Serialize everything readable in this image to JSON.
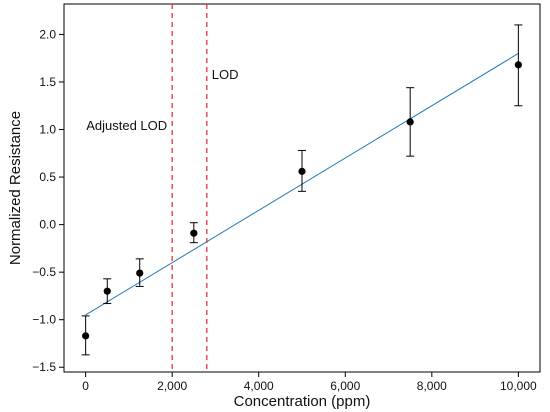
{
  "chart_data": {
    "type": "scatter",
    "xlabel": "Concentration (ppm)",
    "ylabel": "Normalized Resistance",
    "xlim": [
      -500,
      10500
    ],
    "ylim": [
      -1.55,
      2.32
    ],
    "x_ticks": [
      0,
      2000,
      4000,
      6000,
      8000,
      10000
    ],
    "x_tick_labels": [
      "0",
      "2,000",
      "4,000",
      "6,000",
      "8,000",
      "10,000"
    ],
    "y_ticks": [
      -1.5,
      -1.0,
      -0.5,
      0.0,
      0.5,
      1.0,
      1.5,
      2.0
    ],
    "y_tick_labels": [
      "−1.5",
      "−1.0",
      "−0.5",
      "0.0",
      "0.5",
      "1.0",
      "1.5",
      "2.0"
    ],
    "grid": false,
    "series": [
      {
        "type": "scatter",
        "color": "#000000",
        "points": [
          {
            "x": 0,
            "y": -1.17,
            "err_low": -1.37,
            "err_high": -0.96
          },
          {
            "x": 500,
            "y": -0.7,
            "err_low": -0.83,
            "err_high": -0.57
          },
          {
            "x": 1250,
            "y": -0.51,
            "err_low": -0.65,
            "err_high": -0.36
          },
          {
            "x": 2500,
            "y": -0.09,
            "err_low": -0.19,
            "err_high": 0.02
          },
          {
            "x": 5000,
            "y": 0.56,
            "err_low": 0.35,
            "err_high": 0.78
          },
          {
            "x": 7500,
            "y": 1.08,
            "err_low": 0.72,
            "err_high": 1.44
          },
          {
            "x": 10000,
            "y": 1.68,
            "err_low": 1.25,
            "err_high": 2.1
          }
        ]
      },
      {
        "type": "line",
        "color": "#1f77b4",
        "points": [
          {
            "x": 0,
            "y": -0.95
          },
          {
            "x": 10000,
            "y": 1.8
          }
        ]
      }
    ],
    "vlines": [
      {
        "x": 2000,
        "label": "Adjusted LOD",
        "color": "#e8313a",
        "style": "dashed",
        "label_side": "left"
      },
      {
        "x": 2800,
        "label": "LOD",
        "color": "#e8313a",
        "style": "dashed",
        "label_side": "right"
      }
    ]
  }
}
